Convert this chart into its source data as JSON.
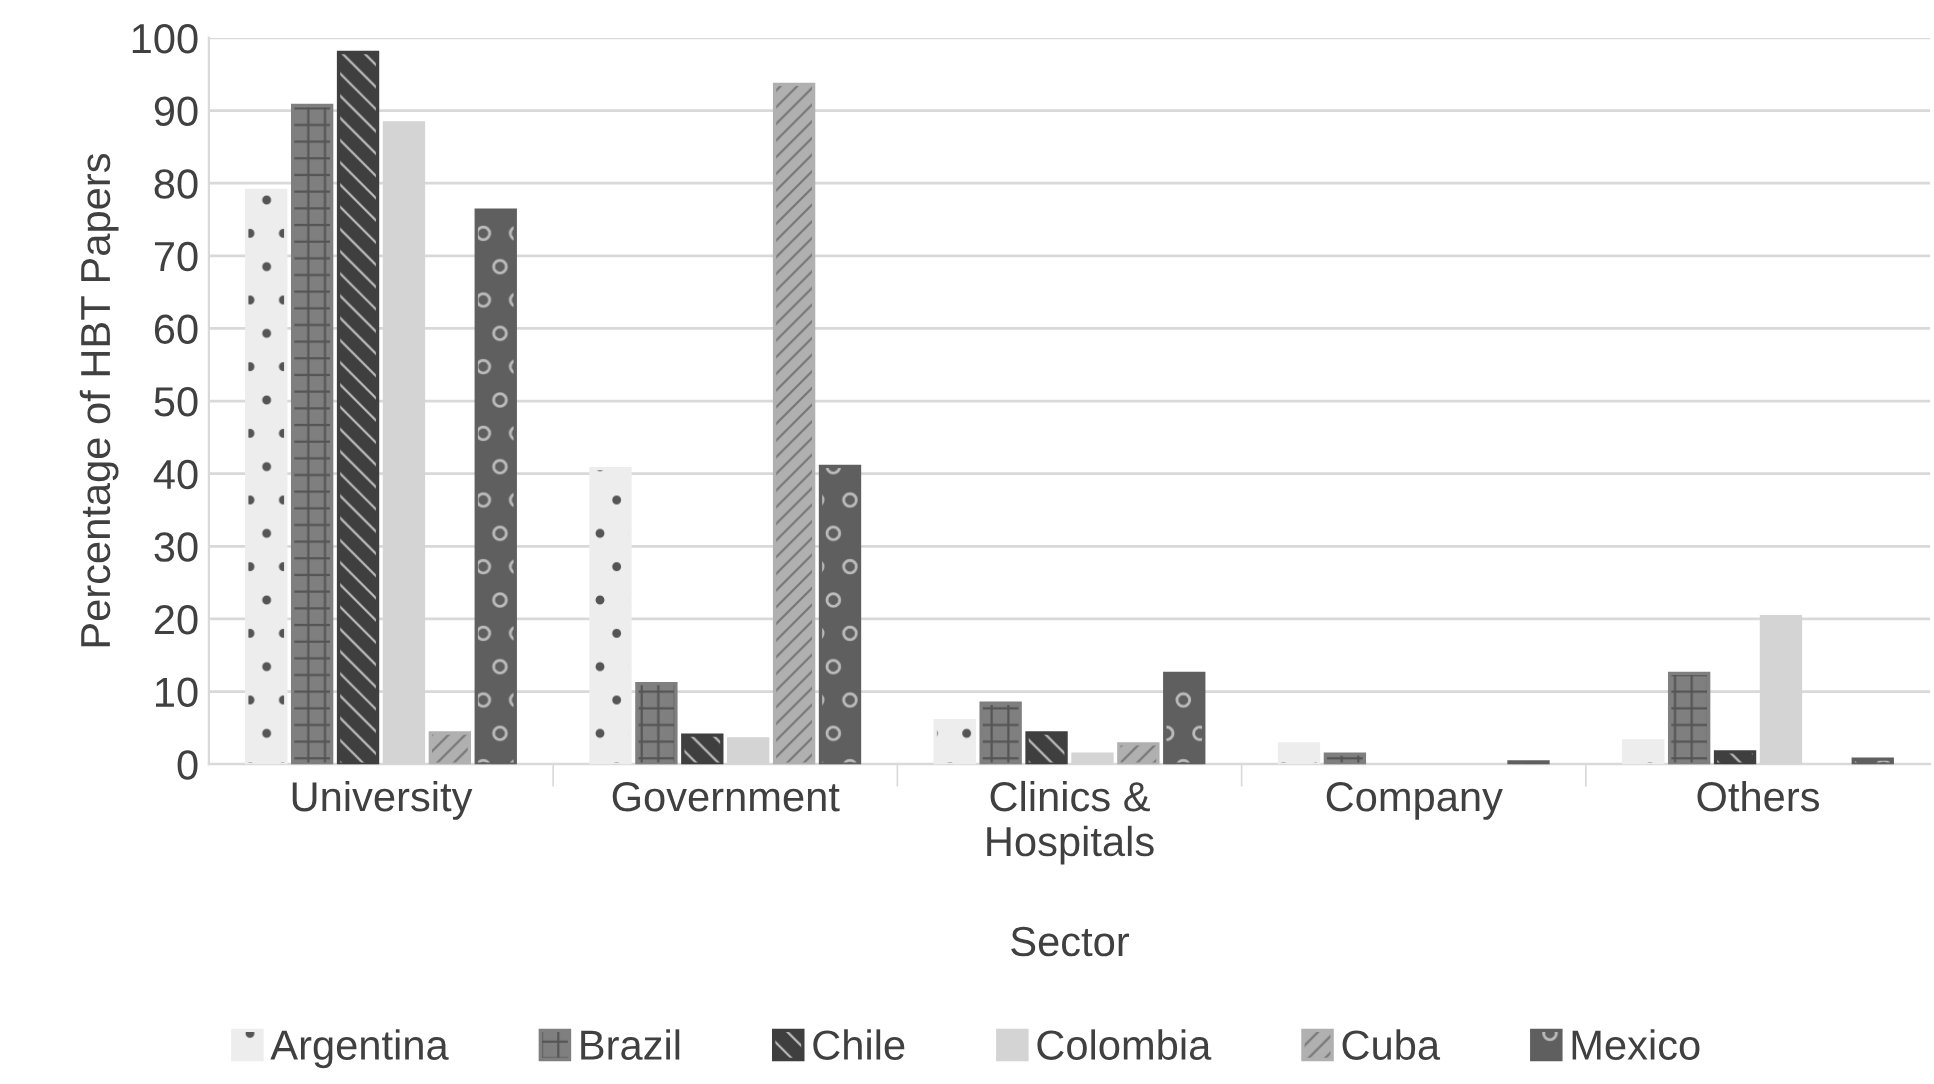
{
  "chart_data": {
    "type": "bar",
    "xlabel": "Sector",
    "ylabel": "Percentage of HBT Papers",
    "categories": [
      "University",
      "Government",
      "Clinics &\nHospitals",
      "Company",
      "Others"
    ],
    "series": [
      {
        "name": "Argentina",
        "color": "#ededed",
        "values": [
          79,
          40.7,
          6.0,
          2.8,
          3.2
        ]
      },
      {
        "name": "Brazil",
        "color": "#7f7f7f",
        "values": [
          90.7,
          11.1,
          8.4,
          1.4,
          12.5
        ]
      },
      {
        "name": "Chile",
        "color": "#3f3f3f",
        "values": [
          98,
          4.0,
          4.3,
          null,
          1.7
        ]
      },
      {
        "name": "Colombia",
        "color": "#d4d4d4",
        "values": [
          88.3,
          3.5,
          1.4,
          null,
          20.3
        ]
      },
      {
        "name": "Cuba",
        "color": "#b0b0b0",
        "values": [
          4.3,
          93.6,
          2.8,
          null,
          null
        ]
      },
      {
        "name": "Mexico",
        "color": "#5f5f5f",
        "values": [
          76.3,
          41.0,
          12.5,
          0.3,
          0.7
        ]
      }
    ],
    "ylim": [
      0,
      100
    ],
    "yticks": [
      0,
      10,
      20,
      30,
      40,
      50,
      60,
      70,
      80,
      90,
      100
    ],
    "grid": "y",
    "legend": "bottom"
  }
}
